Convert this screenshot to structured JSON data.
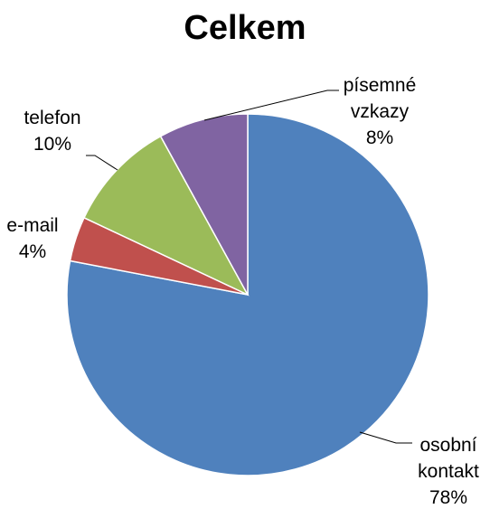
{
  "chart_data": {
    "type": "pie",
    "title": "Celkem",
    "categories": [
      "osobní kontakt",
      "e-mail",
      "telefon",
      "písemné vzkazy"
    ],
    "values": [
      78,
      4,
      10,
      8
    ],
    "value_labels": [
      "78%",
      "4%",
      "10%",
      "8%"
    ],
    "colors": [
      "#4f81bd",
      "#c0504d",
      "#9bbb59",
      "#8064a2"
    ]
  }
}
